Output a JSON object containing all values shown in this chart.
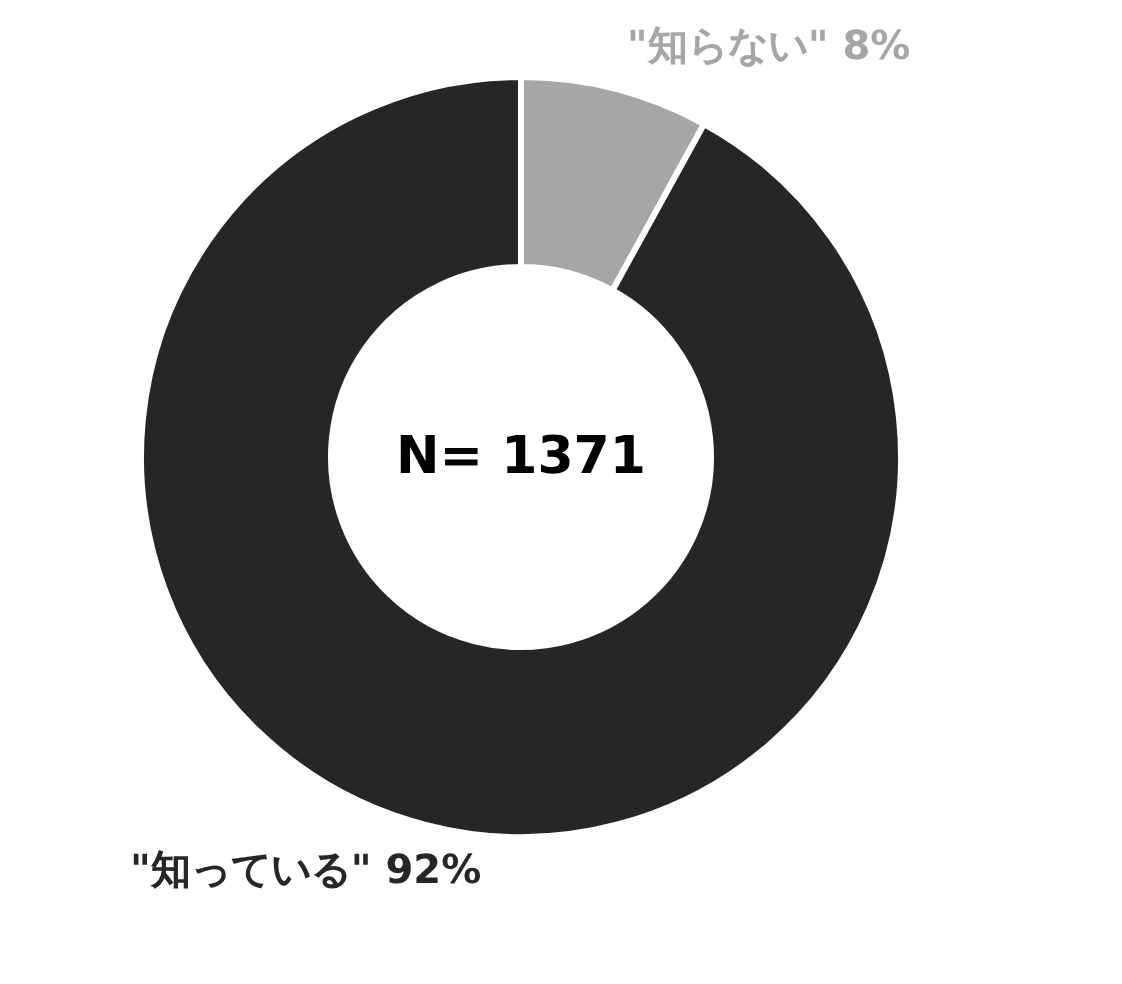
{
  "chart_data": {
    "type": "donut",
    "categories": [
      "\"知らない\"",
      "\"知っている\""
    ],
    "values": [
      8,
      92
    ],
    "colors": [
      "#a6a6a6",
      "#262626"
    ],
    "value_labels": [
      "8%",
      "92%"
    ],
    "annotations": [
      "N= 1371"
    ]
  }
}
